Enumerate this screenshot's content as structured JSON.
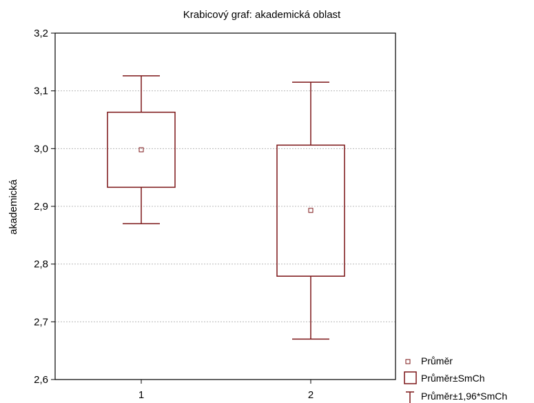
{
  "chart_data": {
    "type": "box",
    "title": "Krabicový  graf: akademická oblast",
    "xlabel": "",
    "ylabel": "akademická",
    "ylim": [
      2.6,
      3.2
    ],
    "yticks": [
      "2,6",
      "2,7",
      "2,8",
      "2,9",
      "3,0",
      "3,1",
      "3,2"
    ],
    "yticks_values": [
      2.6,
      2.7,
      2.8,
      2.9,
      3.0,
      3.1,
      3.2
    ],
    "categories": [
      "1",
      "2"
    ],
    "series": [
      {
        "category": "1",
        "mean": 2.998,
        "box_low": 2.933,
        "box_high": 3.063,
        "whisker_low": 2.87,
        "whisker_high": 3.126
      },
      {
        "category": "2",
        "mean": 2.893,
        "box_low": 2.779,
        "box_high": 3.006,
        "whisker_low": 2.67,
        "whisker_high": 3.115
      }
    ],
    "grid": "horizontal dotted",
    "legend_position": "bottom-right",
    "legend": [
      "Průměr",
      "Průměr±SmCh",
      "Průměr±1,96*SmCh"
    ],
    "colors": {
      "box": "#7b1416",
      "grid": "#b8b8b8",
      "axis": "#000000"
    }
  }
}
